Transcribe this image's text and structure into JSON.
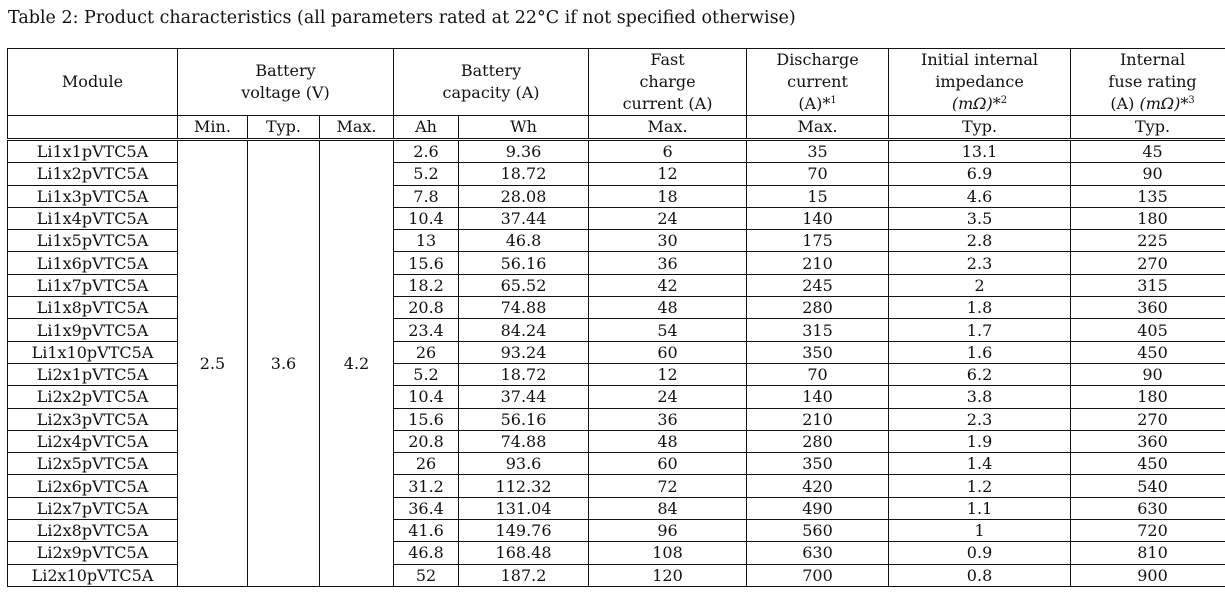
{
  "caption": "Table 2: Product characteristics (all parameters rated at 22°C if not specified otherwise)",
  "headers": {
    "module": "Module",
    "battery_voltage_l1": "Battery",
    "battery_voltage_l2": "voltage (V)",
    "battery_capacity_l1": "Battery",
    "battery_capacity_l2": "capacity (A)",
    "fast_charge_l1": "Fast",
    "fast_charge_l2": "charge",
    "fast_charge_l3": "current (A)",
    "discharge_l1": "Discharge",
    "discharge_l2": "current",
    "discharge_l3": "(A)*",
    "discharge_sup": "1",
    "impedance_l1": "Initial internal",
    "impedance_l2": "impedance",
    "impedance_l3_unit": "(mΩ)",
    "impedance_l3_star": "*",
    "impedance_sup": "2",
    "fuse_l1": "Internal",
    "fuse_l2": "fuse rating",
    "fuse_l3_a": "(A)",
    "fuse_l3_unit": "(mΩ)",
    "fuse_l3_star": "*",
    "fuse_sup": "3"
  },
  "subheaders": [
    "Min.",
    "Typ.",
    "Max.",
    "Ah",
    "Wh",
    "Max.",
    "Max.",
    "Typ.",
    "Typ."
  ],
  "voltage": {
    "min": "2.5",
    "typ": "3.6",
    "max": "4.2"
  },
  "rows": [
    {
      "module": "Li1x1pVTC5A",
      "ah": "2.6",
      "wh": "9.36",
      "fast": "6",
      "discharge": "35",
      "impedance": "13.1",
      "fuse": "45"
    },
    {
      "module": "Li1x2pVTC5A",
      "ah": "5.2",
      "wh": "18.72",
      "fast": "12",
      "discharge": "70",
      "impedance": "6.9",
      "fuse": "90"
    },
    {
      "module": "Li1x3pVTC5A",
      "ah": "7.8",
      "wh": "28.08",
      "fast": "18",
      "discharge": "15",
      "impedance": "4.6",
      "fuse": "135"
    },
    {
      "module": "Li1x4pVTC5A",
      "ah": "10.4",
      "wh": "37.44",
      "fast": "24",
      "discharge": "140",
      "impedance": "3.5",
      "fuse": "180"
    },
    {
      "module": "Li1x5pVTC5A",
      "ah": "13",
      "wh": "46.8",
      "fast": "30",
      "discharge": "175",
      "impedance": "2.8",
      "fuse": "225"
    },
    {
      "module": "Li1x6pVTC5A",
      "ah": "15.6",
      "wh": "56.16",
      "fast": "36",
      "discharge": "210",
      "impedance": "2.3",
      "fuse": "270"
    },
    {
      "module": "Li1x7pVTC5A",
      "ah": "18.2",
      "wh": "65.52",
      "fast": "42",
      "discharge": "245",
      "impedance": "2",
      "fuse": "315"
    },
    {
      "module": "Li1x8pVTC5A",
      "ah": "20.8",
      "wh": "74.88",
      "fast": "48",
      "discharge": "280",
      "impedance": "1.8",
      "fuse": "360"
    },
    {
      "module": "Li1x9pVTC5A",
      "ah": "23.4",
      "wh": "84.24",
      "fast": "54",
      "discharge": "315",
      "impedance": "1.7",
      "fuse": "405"
    },
    {
      "module": "Li1x10pVTC5A",
      "ah": "26",
      "wh": "93.24",
      "fast": "60",
      "discharge": "350",
      "impedance": "1.6",
      "fuse": "450"
    },
    {
      "module": "Li2x1pVTC5A",
      "ah": "5.2",
      "wh": "18.72",
      "fast": "12",
      "discharge": "70",
      "impedance": "6.2",
      "fuse": "90"
    },
    {
      "module": "Li2x2pVTC5A",
      "ah": "10.4",
      "wh": "37.44",
      "fast": "24",
      "discharge": "140",
      "impedance": "3.8",
      "fuse": "180"
    },
    {
      "module": "Li2x3pVTC5A",
      "ah": "15.6",
      "wh": "56.16",
      "fast": "36",
      "discharge": "210",
      "impedance": "2.3",
      "fuse": "270"
    },
    {
      "module": "Li2x4pVTC5A",
      "ah": "20.8",
      "wh": "74.88",
      "fast": "48",
      "discharge": "280",
      "impedance": "1.9",
      "fuse": "360"
    },
    {
      "module": "Li2x5pVTC5A",
      "ah": "26",
      "wh": "93.6",
      "fast": "60",
      "discharge": "350",
      "impedance": "1.4",
      "fuse": "450"
    },
    {
      "module": "Li2x6pVTC5A",
      "ah": "31.2",
      "wh": "112.32",
      "fast": "72",
      "discharge": "420",
      "impedance": "1.2",
      "fuse": "540"
    },
    {
      "module": "Li2x7pVTC5A",
      "ah": "36.4",
      "wh": "131.04",
      "fast": "84",
      "discharge": "490",
      "impedance": "1.1",
      "fuse": "630"
    },
    {
      "module": "Li2x8pVTC5A",
      "ah": "41.6",
      "wh": "149.76",
      "fast": "96",
      "discharge": "560",
      "impedance": "1",
      "fuse": "720"
    },
    {
      "module": "Li2x9pVTC5A",
      "ah": "46.8",
      "wh": "168.48",
      "fast": "108",
      "discharge": "630",
      "impedance": "0.9",
      "fuse": "810"
    },
    {
      "module": "Li2x10pVTC5A",
      "ah": "52",
      "wh": "187.2",
      "fast": "120",
      "discharge": "700",
      "impedance": "0.8",
      "fuse": "900"
    }
  ]
}
